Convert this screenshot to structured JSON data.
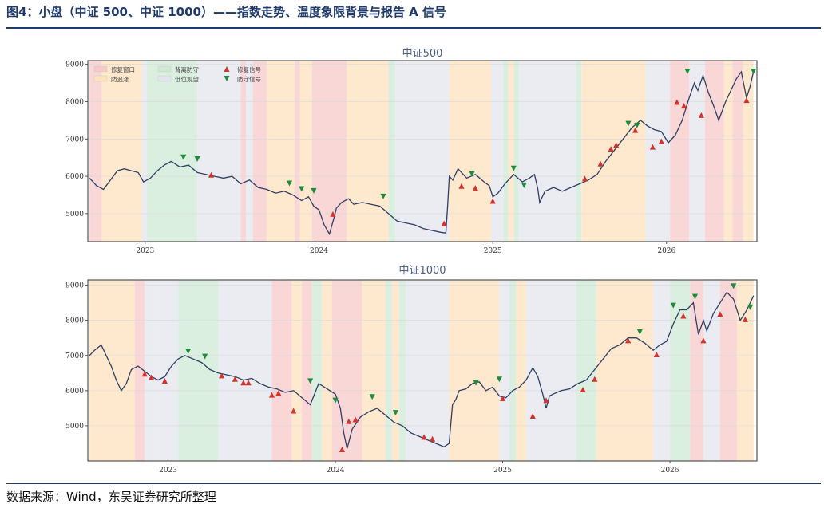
{
  "figure": {
    "title": "图4：小盘（中证 500、中证 1000）——指数走势、温度象限背景与报告 A 信号",
    "source": "数据来源：Wind，东吴证券研究所整理"
  },
  "colors": {
    "line": "#2f3f63",
    "repair_window": "#f7c9c9",
    "defensive_chase": "#fde2bd",
    "high_defense": "#cfe9d5",
    "low_watch": "#e4e4ee",
    "repair_signal": "#d0342c",
    "defense_signal": "#1e8c3a",
    "axis": "#333333"
  },
  "legend": {
    "items": [
      {
        "label": "修复窗口",
        "type": "patch",
        "color_key": "repair_window"
      },
      {
        "label": "防追涨",
        "type": "patch",
        "color_key": "defensive_chase"
      },
      {
        "label": "背离防守",
        "type": "patch",
        "color_key": "high_defense"
      },
      {
        "label": "低位观望",
        "type": "patch",
        "color_key": "low_watch"
      },
      {
        "label": "修复信号",
        "type": "marker-up",
        "color_key": "repair_signal"
      },
      {
        "label": "防守信号",
        "type": "marker-down",
        "color_key": "defense_signal"
      }
    ]
  },
  "chart_data": [
    {
      "type": "line",
      "title": "中证500",
      "xlim": [
        2022.67,
        2026.52
      ],
      "ylim": [
        4250,
        9100
      ],
      "xticks": [
        2023,
        2024,
        2025,
        2026
      ],
      "xtick_labels": [
        "2023",
        "2024",
        "2025",
        "2026"
      ],
      "yticks": [
        5000,
        6000,
        7000,
        8000,
        9000
      ],
      "ytick_labels": [
        "5000",
        "6000",
        "7000",
        "8000",
        "9000"
      ],
      "series": [
        {
          "x": [
            2022.68,
            2022.72,
            2022.76,
            2022.8,
            2022.84,
            2022.88,
            2022.92,
            2022.96,
            2022.99,
            2023.03,
            2023.07,
            2023.11,
            2023.15,
            2023.2,
            2023.25,
            2023.3,
            2023.35,
            2023.4,
            2023.45,
            2023.5,
            2023.55,
            2023.6,
            2023.65,
            2023.7,
            2023.75,
            2023.8,
            2023.85,
            2023.9,
            2023.94,
            2023.97,
            2024.0,
            2024.03,
            2024.06,
            2024.09,
            2024.1,
            2024.13,
            2024.17,
            2024.2,
            2024.25,
            2024.3,
            2024.35,
            2024.4,
            2024.45,
            2024.5,
            2024.55,
            2024.6,
            2024.65,
            2024.7,
            2024.73,
            2024.74,
            2024.75,
            2024.77,
            2024.8,
            2024.85,
            2024.9,
            2024.95,
            2024.98,
            2025.0,
            2025.03,
            2025.07,
            2025.12,
            2025.17,
            2025.21,
            2025.24,
            2025.26,
            2025.27,
            2025.3,
            2025.35,
            2025.4,
            2025.45,
            2025.5,
            2025.55,
            2025.6,
            2025.65,
            2025.7,
            2025.75,
            2025.8,
            2025.85,
            2025.89,
            2025.93,
            2025.97,
            2026.01,
            2026.05,
            2026.09,
            2026.13,
            2026.16,
            2026.18,
            2026.21,
            2026.24,
            2026.27,
            2026.3,
            2026.34,
            2026.37,
            2026.4,
            2026.43,
            2026.46,
            2026.48,
            2026.5
          ],
          "values": [
            5950,
            5750,
            5650,
            5900,
            6150,
            6200,
            6150,
            6100,
            5850,
            5950,
            6150,
            6300,
            6400,
            6250,
            6300,
            6100,
            6050,
            6000,
            5950,
            6000,
            5800,
            5900,
            5700,
            5650,
            5550,
            5600,
            5500,
            5350,
            5450,
            5200,
            5100,
            4700,
            4450,
            4950,
            5150,
            5300,
            5400,
            5250,
            5300,
            5250,
            5200,
            5000,
            4800,
            4750,
            4700,
            4600,
            4550,
            4500,
            4480,
            5200,
            6000,
            5900,
            6200,
            5950,
            6050,
            5850,
            5750,
            5450,
            5550,
            5800,
            6050,
            5850,
            5950,
            6050,
            5650,
            5300,
            5600,
            5700,
            5600,
            5700,
            5800,
            5900,
            6050,
            6400,
            6700,
            7000,
            7300,
            7500,
            7350,
            7250,
            7200,
            6900,
            7100,
            7500,
            8100,
            8500,
            8300,
            8700,
            8250,
            7900,
            7500,
            8000,
            8300,
            8600,
            8800,
            8100,
            8400,
            8800
          ]
        }
      ],
      "repair_signals": [
        [
          2023.38,
          6200
        ],
        [
          2024.08,
          5150
        ],
        [
          2024.72,
          4900
        ],
        [
          2024.82,
          5900
        ],
        [
          2024.9,
          5850
        ],
        [
          2025.0,
          5500
        ],
        [
          2025.53,
          6100
        ],
        [
          2025.62,
          6500
        ],
        [
          2025.68,
          6900
        ],
        [
          2025.71,
          7000
        ],
        [
          2025.82,
          7400
        ],
        [
          2025.92,
          6950
        ],
        [
          2025.97,
          7100
        ],
        [
          2026.06,
          8150
        ],
        [
          2026.1,
          8050
        ],
        [
          2026.2,
          7800
        ],
        [
          2026.46,
          8200
        ]
      ],
      "defense_signals": [
        [
          2023.22,
          6350
        ],
        [
          2023.3,
          6300
        ],
        [
          2023.83,
          5650
        ],
        [
          2023.9,
          5500
        ],
        [
          2023.97,
          5450
        ],
        [
          2024.37,
          5300
        ],
        [
          2024.88,
          5900
        ],
        [
          2025.12,
          6050
        ],
        [
          2025.18,
          5600
        ],
        [
          2025.78,
          7250
        ],
        [
          2025.83,
          7200
        ],
        [
          2026.12,
          8650
        ],
        [
          2026.5,
          8650
        ]
      ]
    },
    {
      "type": "line",
      "title": "中证1000",
      "xlim": [
        2022.52,
        2026.52
      ],
      "ylim": [
        4000,
        9150
      ],
      "xticks": [
        2023,
        2024,
        2025,
        2026
      ],
      "xtick_labels": [
        "2023",
        "2024",
        "2025",
        "2026"
      ],
      "yticks": [
        5000,
        6000,
        7000,
        8000,
        9000
      ],
      "ytick_labels": [
        "5000",
        "6000",
        "7000",
        "8000",
        "9000"
      ],
      "series": [
        {
          "x": [
            2022.53,
            2022.56,
            2022.6,
            2022.63,
            2022.66,
            2022.69,
            2022.72,
            2022.75,
            2022.78,
            2022.82,
            2022.86,
            2022.9,
            2022.94,
            2022.98,
            2023.02,
            2023.06,
            2023.1,
            2023.15,
            2023.2,
            2023.25,
            2023.3,
            2023.35,
            2023.4,
            2023.45,
            2023.5,
            2023.55,
            2023.6,
            2023.65,
            2023.7,
            2023.75,
            2023.8,
            2023.85,
            2023.9,
            2023.95,
            2024.0,
            2024.03,
            2024.05,
            2024.07,
            2024.1,
            2024.15,
            2024.2,
            2024.25,
            2024.3,
            2024.35,
            2024.4,
            2024.45,
            2024.5,
            2024.55,
            2024.6,
            2024.65,
            2024.68,
            2024.7,
            2024.72,
            2024.74,
            2024.78,
            2024.82,
            2024.86,
            2024.9,
            2024.94,
            2024.98,
            2025.02,
            2025.06,
            2025.1,
            2025.14,
            2025.18,
            2025.21,
            2025.24,
            2025.26,
            2025.28,
            2025.3,
            2025.35,
            2025.4,
            2025.45,
            2025.5,
            2025.55,
            2025.6,
            2025.65,
            2025.7,
            2025.75,
            2025.8,
            2025.85,
            2025.9,
            2025.94,
            2025.98,
            2026.02,
            2026.06,
            2026.1,
            2026.14,
            2026.17,
            2026.2,
            2026.22,
            2026.26,
            2026.3,
            2026.34,
            2026.38,
            2026.42,
            2026.46,
            2026.5
          ],
          "values": [
            7000,
            7150,
            7300,
            7000,
            6700,
            6300,
            6000,
            6200,
            6600,
            6700,
            6550,
            6400,
            6300,
            6400,
            6700,
            6900,
            7000,
            6900,
            6800,
            6600,
            6500,
            6450,
            6400,
            6300,
            6350,
            6200,
            6100,
            6050,
            5950,
            6000,
            5800,
            5600,
            6200,
            6050,
            5900,
            5500,
            4800,
            4350,
            4900,
            5250,
            5400,
            5500,
            5300,
            5100,
            5000,
            4800,
            4700,
            4600,
            4500,
            4400,
            4500,
            5600,
            5750,
            6000,
            6050,
            6200,
            6250,
            6000,
            6100,
            5850,
            5800,
            6000,
            6100,
            6300,
            6650,
            6400,
            5900,
            5500,
            5850,
            5900,
            6000,
            6050,
            6200,
            6300,
            6600,
            6900,
            7200,
            7300,
            7500,
            7500,
            7350,
            7150,
            7300,
            7400,
            7900,
            8300,
            8300,
            8500,
            7600,
            8000,
            7700,
            8200,
            8500,
            8800,
            8600,
            8000,
            8300,
            8700
          ]
        }
      ],
      "repair_signals": [
        [
          2022.86,
          6650
        ],
        [
          2022.9,
          6550
        ],
        [
          2022.98,
          6450
        ],
        [
          2023.32,
          6600
        ],
        [
          2023.4,
          6500
        ],
        [
          2023.45,
          6400
        ],
        [
          2023.48,
          6400
        ],
        [
          2023.62,
          6050
        ],
        [
          2023.66,
          6100
        ],
        [
          2023.75,
          5600
        ],
        [
          2024.04,
          4500
        ],
        [
          2024.08,
          5300
        ],
        [
          2024.12,
          5350
        ],
        [
          2024.53,
          4850
        ],
        [
          2024.58,
          4800
        ],
        [
          2025.0,
          5950
        ],
        [
          2025.18,
          5450
        ],
        [
          2025.26,
          5900
        ],
        [
          2025.48,
          6200
        ],
        [
          2025.55,
          6500
        ],
        [
          2025.75,
          7600
        ],
        [
          2025.92,
          7200
        ],
        [
          2026.08,
          8300
        ],
        [
          2026.2,
          7600
        ],
        [
          2026.3,
          8350
        ],
        [
          2026.45,
          8200
        ]
      ],
      "defense_signals": [
        [
          2023.12,
          6950
        ],
        [
          2023.22,
          6800
        ],
        [
          2023.85,
          6100
        ],
        [
          2024.0,
          5550
        ],
        [
          2024.22,
          5650
        ],
        [
          2024.36,
          5200
        ],
        [
          2024.84,
          6050
        ],
        [
          2024.98,
          6150
        ],
        [
          2025.82,
          7500
        ],
        [
          2026.02,
          8250
        ],
        [
          2026.15,
          8500
        ],
        [
          2026.38,
          8800
        ],
        [
          2026.48,
          8200
        ]
      ]
    }
  ],
  "background_regimes": [
    [
      [
        2022.68,
        2022.75,
        "repair_window"
      ],
      [
        2022.75,
        2022.98,
        "defensive_chase"
      ],
      [
        2022.98,
        2023.01,
        "low_watch"
      ],
      [
        2023.01,
        2023.3,
        "high_defense"
      ],
      [
        2023.3,
        2023.55,
        "low_watch"
      ],
      [
        2023.55,
        2023.58,
        "repair_window"
      ],
      [
        2023.58,
        2023.62,
        "low_watch"
      ],
      [
        2023.62,
        2023.7,
        "repair_window"
      ],
      [
        2023.7,
        2023.86,
        "defensive_chase"
      ],
      [
        2023.86,
        2023.89,
        "repair_window"
      ],
      [
        2023.89,
        2023.96,
        "defensive_chase"
      ],
      [
        2023.96,
        2024.16,
        "repair_window"
      ],
      [
        2024.16,
        2024.4,
        "defensive_chase"
      ],
      [
        2024.4,
        2024.44,
        "high_defense"
      ],
      [
        2024.44,
        2024.75,
        "low_watch"
      ],
      [
        2024.75,
        2024.99,
        "defensive_chase"
      ],
      [
        2024.99,
        2025.06,
        "low_watch"
      ],
      [
        2025.06,
        2025.09,
        "high_defense"
      ],
      [
        2025.09,
        2025.12,
        "defensive_chase"
      ],
      [
        2025.12,
        2025.15,
        "high_defense"
      ],
      [
        2025.15,
        2025.48,
        "low_watch"
      ],
      [
        2025.48,
        2025.51,
        "high_defense"
      ],
      [
        2025.51,
        2025.88,
        "defensive_chase"
      ],
      [
        2025.88,
        2026.02,
        "low_watch"
      ],
      [
        2026.02,
        2026.13,
        "repair_window"
      ],
      [
        2026.13,
        2026.22,
        "low_watch"
      ],
      [
        2026.22,
        2026.33,
        "repair_window"
      ],
      [
        2026.33,
        2026.38,
        "defensive_chase"
      ],
      [
        2026.38,
        2026.44,
        "repair_window"
      ],
      [
        2026.44,
        2026.5,
        "defensive_chase"
      ]
    ],
    [
      [
        2022.53,
        2022.8,
        "defensive_chase"
      ],
      [
        2022.8,
        2022.86,
        "repair_window"
      ],
      [
        2022.86,
        2022.93,
        "low_watch"
      ],
      [
        2022.93,
        2023.06,
        "low_watch"
      ],
      [
        2023.06,
        2023.3,
        "high_defense"
      ],
      [
        2023.3,
        2023.62,
        "low_watch"
      ],
      [
        2023.62,
        2023.74,
        "repair_window"
      ],
      [
        2023.74,
        2023.8,
        "defensive_chase"
      ],
      [
        2023.8,
        2023.86,
        "repair_window"
      ],
      [
        2023.86,
        2023.92,
        "high_defense"
      ],
      [
        2023.92,
        2023.98,
        "defensive_chase"
      ],
      [
        2023.98,
        2024.16,
        "repair_window"
      ],
      [
        2024.16,
        2024.3,
        "defensive_chase"
      ],
      [
        2024.3,
        2024.34,
        "high_defense"
      ],
      [
        2024.34,
        2024.38,
        "defensive_chase"
      ],
      [
        2024.38,
        2024.42,
        "high_defense"
      ],
      [
        2024.42,
        2024.68,
        "low_watch"
      ],
      [
        2024.68,
        2024.98,
        "defensive_chase"
      ],
      [
        2024.98,
        2025.04,
        "low_watch"
      ],
      [
        2025.04,
        2025.08,
        "high_defense"
      ],
      [
        2025.08,
        2025.14,
        "defensive_chase"
      ],
      [
        2025.14,
        2025.44,
        "low_watch"
      ],
      [
        2025.44,
        2025.56,
        "high_defense"
      ],
      [
        2025.56,
        2025.9,
        "defensive_chase"
      ],
      [
        2025.9,
        2026.0,
        "low_watch"
      ],
      [
        2026.0,
        2026.12,
        "high_defense"
      ],
      [
        2026.12,
        2026.2,
        "repair_window"
      ],
      [
        2026.2,
        2026.3,
        "low_watch"
      ],
      [
        2026.3,
        2026.4,
        "repair_window"
      ],
      [
        2026.4,
        2026.5,
        "defensive_chase"
      ]
    ]
  ]
}
